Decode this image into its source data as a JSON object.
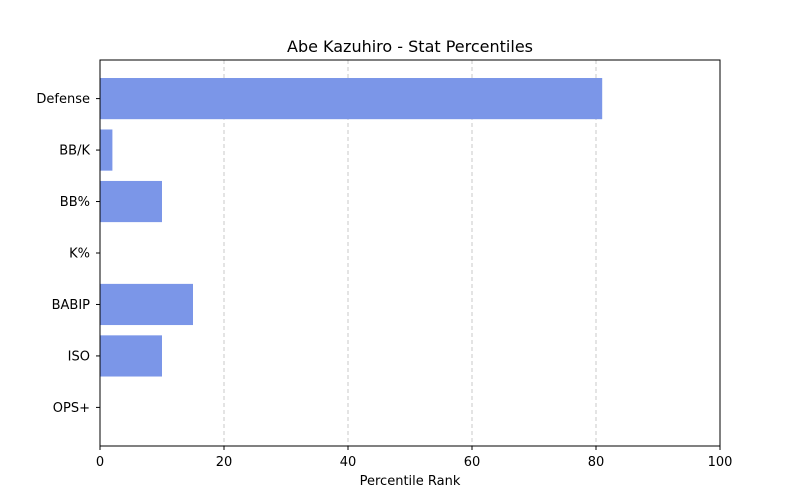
{
  "chart_data": {
    "type": "bar",
    "orientation": "horizontal",
    "title": "Abe Kazuhiro - Stat Percentiles",
    "xlabel": "Percentile Rank",
    "ylabel": "",
    "categories": [
      "Defense",
      "BB/K",
      "BB%",
      "K%",
      "BABIP",
      "ISO",
      "OPS+"
    ],
    "values": [
      81,
      2,
      10,
      0,
      15,
      10,
      0
    ],
    "xlim": [
      0,
      100
    ],
    "xticks": [
      0,
      20,
      40,
      60,
      80,
      100
    ],
    "grid": "x-dashed",
    "legend": "none",
    "colors": {
      "bar": "#7b96e8",
      "grid": "#c8c8c8",
      "axis": "#000000"
    }
  }
}
